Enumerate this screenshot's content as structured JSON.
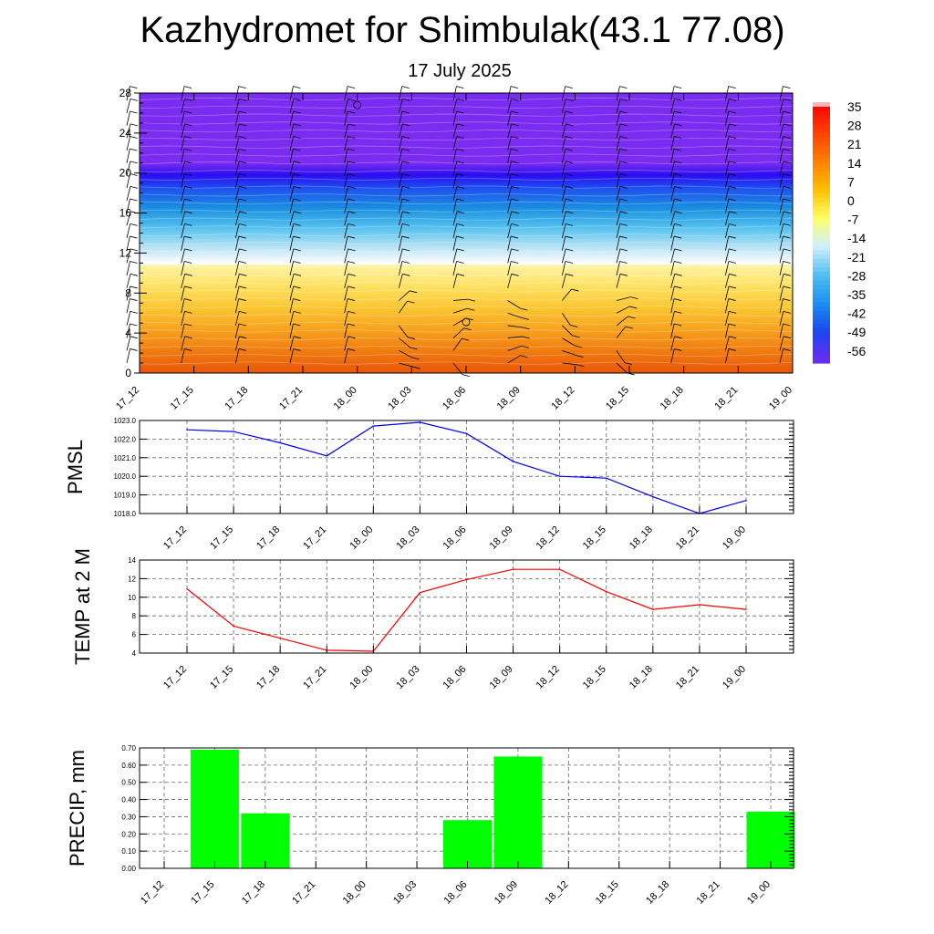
{
  "header": {
    "title": "Kazhydromet for Shimbulak(43.1 77.08)",
    "subtitle": "17 July 2025"
  },
  "chart_data": [
    {
      "type": "heatmap",
      "title": "Kazhydromet for Shimbulak(43.1 77.08)",
      "subtitle": "17 July 2025",
      "x_ticks": [
        "17_12",
        "17_15",
        "17_18",
        "17_21",
        "18_00",
        "18_03",
        "18_06",
        "18_09",
        "18_12",
        "18_15",
        "18_18",
        "18_21",
        "19_00"
      ],
      "y_ticks": [
        0,
        4,
        8,
        12,
        16,
        20,
        24,
        28
      ],
      "ylim": [
        0,
        28
      ],
      "colorbar_labels": [
        35,
        28,
        21,
        14,
        7,
        0,
        -7,
        -14,
        -21,
        -28,
        -35,
        -42,
        -49,
        -56
      ],
      "colors": {
        "warm": [
          "#e8560a",
          "#f07b10",
          "#f7a21e",
          "#fbc531",
          "#fde161",
          "#fff3a5"
        ],
        "cold": [
          "#ffffff",
          "#bde4f5",
          "#56c2ee",
          "#1a8fe0",
          "#1e4ff0",
          "#2a0cf2",
          "#7a2cf0"
        ],
        "colorbar": [
          "#ff0000",
          "#ff4000",
          "#ff8000",
          "#ffbf00",
          "#ffff66",
          "#cfefff",
          "#4fbfef",
          "#1a8ef0",
          "#1a45f0",
          "#6a2df0"
        ]
      },
      "temperature_profile": [
        {
          "height": 0,
          "temp": 12
        },
        {
          "height": 5,
          "temp": 6
        },
        {
          "height": 11,
          "temp": -12
        },
        {
          "height": 14,
          "temp": -27
        },
        {
          "height": 17,
          "temp": -42
        },
        {
          "height": 19.5,
          "temp": -56
        },
        {
          "height": 21,
          "temp": -58
        },
        {
          "height": 28,
          "temp": -60
        }
      ]
    },
    {
      "type": "line",
      "ylabel": "PMSL",
      "categories": [
        "17_12",
        "17_15",
        "17_18",
        "17_21",
        "18_00",
        "18_03",
        "18_06",
        "18_09",
        "18_12",
        "18_15",
        "18_18",
        "18_21",
        "19_00"
      ],
      "values": [
        1022.5,
        1022.4,
        1021.8,
        1021.1,
        1022.7,
        1022.9,
        1022.3,
        1020.8,
        1020.0,
        1019.9,
        1018.9,
        1018.0,
        1018.7
      ],
      "ylim": [
        1018,
        1023
      ],
      "yticks": [
        "1018.0",
        "1019.0",
        "1020.0",
        "1021.0",
        "1022.0",
        "1023.0"
      ],
      "color": "#0000ff",
      "grid": true
    },
    {
      "type": "line",
      "ylabel": "TEMP at 2 M",
      "categories": [
        "17_12",
        "17_15",
        "17_18",
        "17_21",
        "18_00",
        "18_03",
        "18_06",
        "18_09",
        "18_12",
        "18_15",
        "18_18",
        "18_21",
        "19_00"
      ],
      "values": [
        10.9,
        6.9,
        5.6,
        4.3,
        4.2,
        10.5,
        11.9,
        13.0,
        13.0,
        10.6,
        8.7,
        9.2,
        8.7
      ],
      "ylim": [
        4,
        14
      ],
      "yticks": [
        "4",
        "6",
        "8",
        "10",
        "12",
        "14"
      ],
      "color": "#ff0000",
      "grid": true
    },
    {
      "type": "bar",
      "ylabel": "PRECIP, mm",
      "categories": [
        "17_12",
        "17_15",
        "17_18",
        "17_21",
        "18_00",
        "18_03",
        "18_06",
        "18_09",
        "18_12",
        "18_15",
        "18_18",
        "18_21",
        "19_00"
      ],
      "values": [
        0,
        0.69,
        0.32,
        0,
        0,
        0,
        0.28,
        0.65,
        0,
        0,
        0,
        0,
        0.33
      ],
      "ylim": [
        0,
        0.7
      ],
      "yticks": [
        "0.00",
        "0.10",
        "0.20",
        "0.30",
        "0.40",
        "0.50",
        "0.60",
        "0.70"
      ],
      "color": "#00ff00",
      "grid": true
    }
  ]
}
